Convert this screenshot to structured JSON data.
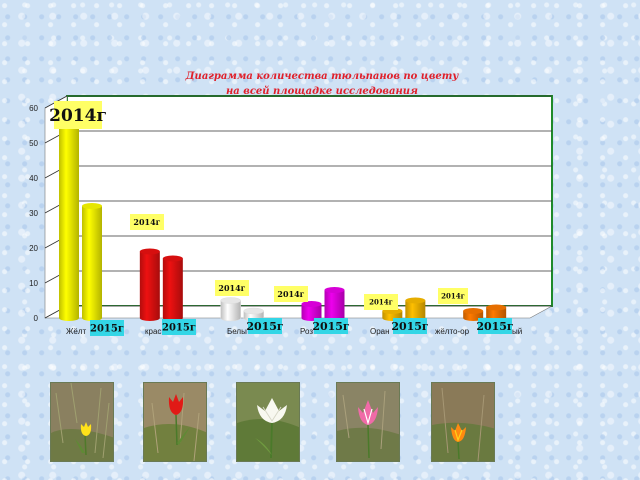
{
  "chart_data": {
    "type": "bar",
    "title": [
      "Диаграмма  количества тюльпанов по цвету",
      "на всей площадке исследования"
    ],
    "categories": [
      "Жёлтые",
      "красные",
      "Белые",
      "Розовые",
      "Оранжевые",
      "жёлто-оранжевый"
    ],
    "category_labels_visible": [
      "Жёлт",
      "крас",
      "Белы",
      "Роз",
      "Оран",
      "жёлто-ор",
      "ый"
    ],
    "series": [
      {
        "name": "2014г",
        "values": [
          60,
          19,
          5,
          4,
          2,
          2
        ],
        "color": "#ffff00"
      },
      {
        "name": "2015г",
        "values": [
          32,
          17,
          2,
          8,
          5,
          3
        ],
        "color": "#ffff00"
      }
    ],
    "bar_colors": [
      "#ffff00",
      "#ee1111",
      "#ffffff",
      "#ee00ee",
      "#ffc000",
      "#ff7a00"
    ],
    "ylim": [
      0,
      60
    ],
    "yticks": [
      0,
      10,
      20,
      30,
      40,
      50,
      60
    ],
    "grid": true,
    "legend": "none"
  },
  "tags_2014": [
    "2014г",
    "2014г",
    "2014г",
    "2014г",
    "2014г",
    "2014г"
  ],
  "tags_2015": [
    "2015г",
    "2015г",
    "2015г",
    "2015г",
    "2015г",
    "2015г"
  ],
  "photos": [
    "yellow-tulip-photo",
    "red-tulip-photo",
    "white-tulip-photo",
    "pink-tulip-photo",
    "orange-tulip-photo"
  ],
  "colors": {
    "plot_border": "#1f8a2a",
    "tag_2014_bg": "#ffff66",
    "tag_2015_bg": "#33d6e6",
    "title": "#e0202a"
  }
}
